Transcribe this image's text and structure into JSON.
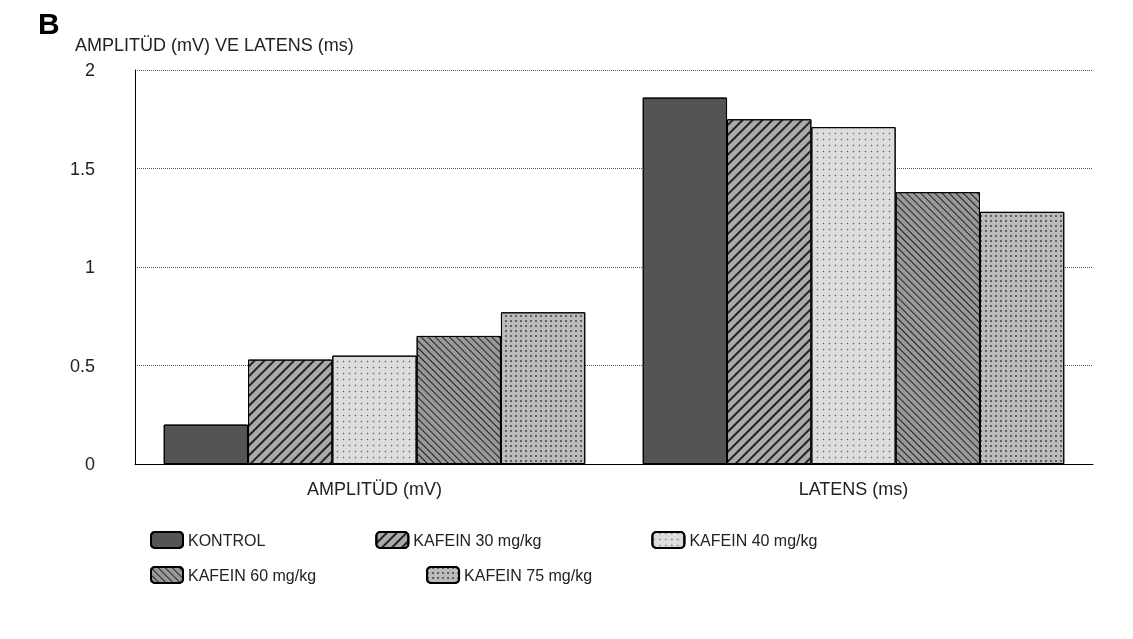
{
  "chart_data": {
    "type": "bar",
    "ylabel": "AMPLITÜD (mV) VE LATENS (ms)",
    "annotations": [
      "B"
    ],
    "categories": [
      "AMPLITÜD (mV)",
      "LATENS (ms)"
    ],
    "series": [
      {
        "name": "KONTROL",
        "color": "#555555",
        "values": [
          0.2,
          1.86
        ]
      },
      {
        "name": "KAFEIN 30 mg/kg",
        "color": "#aaaaaa",
        "values": [
          0.53,
          1.75
        ]
      },
      {
        "name": "KAFEIN 40 mg/kg",
        "color": "#dddddd",
        "values": [
          0.55,
          1.71
        ]
      },
      {
        "name": "KAFEIN 60 mg/kg",
        "color": "#999999",
        "values": [
          0.65,
          1.38
        ]
      },
      {
        "name": "KAFEIN 75 mg/kg",
        "color": "#bbbbbb",
        "values": [
          0.77,
          1.28
        ]
      }
    ],
    "ylim": [
      0,
      2
    ],
    "yticks": [
      0,
      0.5,
      1,
      1.5,
      2
    ],
    "grid": "y",
    "legend": "bottom"
  }
}
